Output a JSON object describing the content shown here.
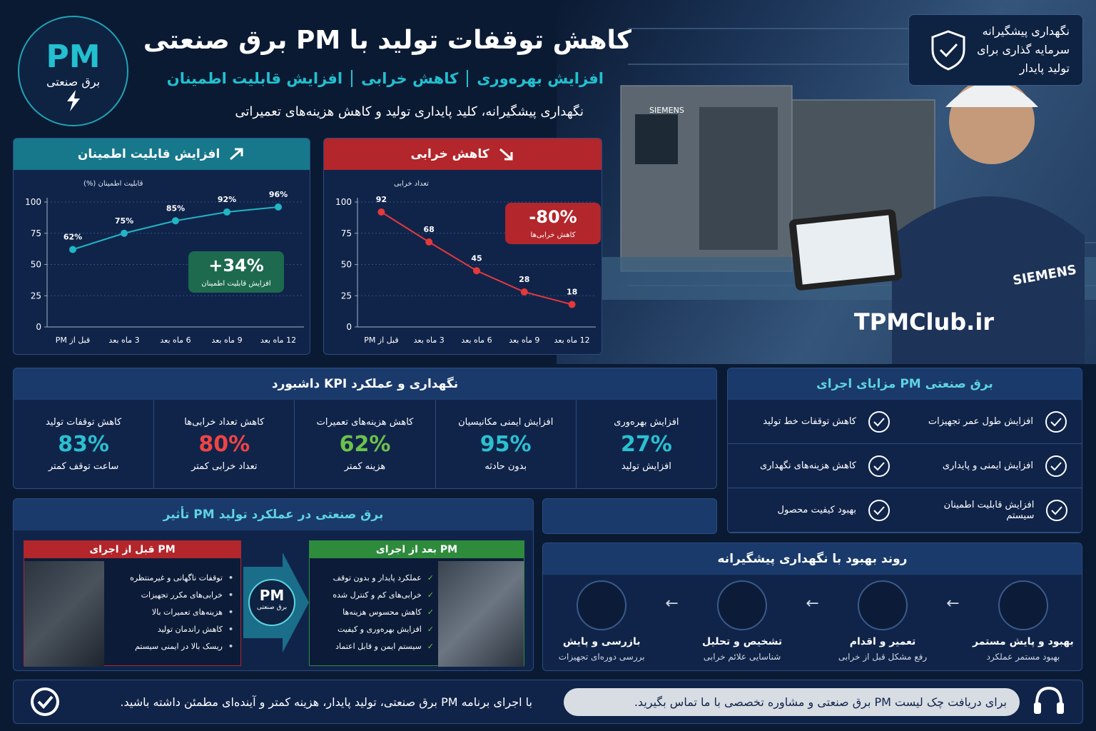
{
  "header": {
    "logo": "PM",
    "logo_caption": "برق صنعتی",
    "title": "کاهش توقفات تولید با PM برق صنعتی",
    "subtitle": [
      "افزایش بهره‌وری",
      "کاهش خرابی",
      "افزایش قابلیت اطمینان"
    ],
    "tagline": "نگهداری پیشگیرانه، کلید پایداری تولید و کاهش هزینه‌های تعمیراتی"
  },
  "badge": {
    "lines": [
      "نگهداری پیشگیرانه",
      "سرمایه گذاری برای",
      "تولید پایدار"
    ]
  },
  "photo": {
    "brand": "SIEMENS",
    "watermark": "TPMClub.ir"
  },
  "chart_data": [
    {
      "type": "line",
      "title": "افزایش قابلیت اطمینان",
      "header_color": "#16788a",
      "y_label": "قابلیت اطمینان (%)",
      "categories": [
        "قبل از PM",
        "3 ماه بعد",
        "6 ماه بعد",
        "9 ماه بعد",
        "12 ماه بعد"
      ],
      "values": [
        62,
        75,
        85,
        92,
        96
      ],
      "value_labels": [
        "62%",
        "75%",
        "85%",
        "92%",
        "96%"
      ],
      "color": "#22b5c4",
      "ylim": [
        0,
        100
      ],
      "yticks": [
        0,
        25,
        50,
        75,
        100
      ],
      "grid": true,
      "annotation": {
        "value": "+34%",
        "label": "افزایش قابلیت اطمینان",
        "color": "#1d6a4f"
      }
    },
    {
      "type": "line",
      "title": "کاهش خرابی",
      "header_color": "#b3262b",
      "y_label": "تعداد خرابی",
      "categories": [
        "قبل از PM",
        "3 ماه بعد",
        "6 ماه بعد",
        "9 ماه بعد",
        "12 ماه بعد"
      ],
      "values": [
        92,
        68,
        45,
        28,
        18
      ],
      "color": "#e5383b",
      "ylim": [
        0,
        100
      ],
      "yticks": [
        0,
        25,
        50,
        75,
        100
      ],
      "grid": true,
      "annotation": {
        "value": "-80%",
        "label": "کاهش خرابی‌ها",
        "color": "#b3262b"
      }
    }
  ],
  "kpi": {
    "title": "داشبورد KPI نگهداری و عملکرد",
    "items": [
      {
        "title": "افزایش بهره‌وری",
        "value": "27%",
        "caption": "افزایش تولید",
        "color": "#2bc0d0"
      },
      {
        "title": "افزایش ایمنی مکانیسیان",
        "value": "95%",
        "caption": "بدون حادثه",
        "color": "#2bc0d0"
      },
      {
        "title": "کاهش هزینه‌های تعمیرات",
        "value": "62%",
        "caption": "هزینه کمتر",
        "color": "#6cc24a"
      },
      {
        "title": "کاهش تعداد خرابی‌ها",
        "value": "80%",
        "caption": "تعداد خرابی کمتر",
        "color": "#ef4444"
      },
      {
        "title": "کاهش توقفات تولید",
        "value": "83%",
        "caption": "ساعت توقف کمتر",
        "color": "#2bc0d0"
      }
    ]
  },
  "benefits": {
    "title": "مزایای اجرای PM برق صنعتی",
    "items": [
      "افزایش طول عمر تجهیزات",
      "کاهش توقفات خط تولید",
      "افزایش ایمنی و پایداری",
      "کاهش هزینه‌های نگهداری",
      "افزایش قابلیت اطمینان سیستم",
      "بهبود کیفیت محصول"
    ]
  },
  "impact": {
    "title": "تأثیر PM برق صنعتی در عملکرد تولید",
    "before": {
      "title": "قبل از اجرای PM",
      "items": [
        "توقفات ناگهانی و غیرمنتظره",
        "خرابی‌های مکرر تجهیزات",
        "هزینه‌های تعمیرات بالا",
        "کاهش راندمان تولید",
        "ریسک بالا در ایمنی سیستم"
      ]
    },
    "arrow": {
      "label": "PM",
      "caption": "برق صنعتی"
    },
    "after": {
      "title": "بعد از اجرای PM",
      "items": [
        "عملکرد پایدار و بدون توقف",
        "خرابی‌های کم و کنترل شده",
        "کاهش محسوس هزینه‌ها",
        "افزایش بهره‌وری و کیفیت",
        "سیستم ایمن و قابل اعتماد"
      ]
    }
  },
  "process": {
    "title": "روند بهبود با نگهداری پیشگیرانه",
    "steps": [
      {
        "title": "بهبود و پایش مستمر",
        "caption": "بهبود مستمر عملکرد"
      },
      {
        "title": "تعمیر و اقدام",
        "caption": "رفع مشکل قبل از خرابی"
      },
      {
        "title": "تشخیص و تحلیل",
        "caption": "شناسایی علائم خرابی"
      },
      {
        "title": "بازرسی و پایش",
        "caption": "بررسی دوره‌ای تجهیزات"
      }
    ]
  },
  "footer": {
    "right": "برای دریافت چک لیست PM برق صنعتی و مشاوره تخصصی با ما تماس بگیرید.",
    "left": "با اجرای برنامه PM برق صنعتی، تولید پایدار، هزینه کمتر و آینده‌ای مطمئن داشته باشید."
  }
}
